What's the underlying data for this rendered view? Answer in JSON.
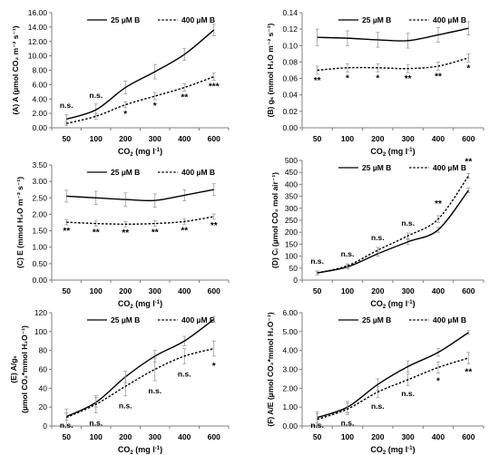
{
  "chart_data": [
    {
      "type": "line",
      "panel_label": "(A)",
      "x": [
        50,
        100,
        200,
        300,
        400,
        600
      ],
      "xlabel_main": "CO",
      "xlabel_sub": "2",
      "xlabel_tail": " (mg l",
      "xlabel_sup": "-1",
      "xlabel_end": ")",
      "ylabel": "(A) A (µmol CO₂ m⁻² s⁻¹)",
      "ylim": [
        0,
        16
      ],
      "yticks": [
        "0.00",
        "2.00",
        "4.00",
        "6.00",
        "8.00",
        "10.00",
        "12.00",
        "14.00",
        "16.00"
      ],
      "series": [
        {
          "name": "25 µM B",
          "style": "solid",
          "values": [
            1.2,
            2.5,
            5.6,
            7.8,
            10.2,
            13.6
          ],
          "err": [
            0.6,
            0.8,
            0.9,
            1.0,
            0.8,
            0.8
          ]
        },
        {
          "name": "400 µM B",
          "style": "dashed",
          "values": [
            0.6,
            1.6,
            3.2,
            4.4,
            5.6,
            7.1
          ],
          "err": [
            0.3,
            0.4,
            0.4,
            0.5,
            0.5,
            0.5
          ]
        }
      ],
      "annotations": [
        "n.s.",
        "n.s.",
        "*",
        "*",
        "**",
        "***"
      ],
      "ann_offsets": [
        -18,
        -18,
        10,
        10,
        10,
        10
      ]
    },
    {
      "type": "line",
      "panel_label": "(B)",
      "x": [
        50,
        100,
        200,
        300,
        400,
        600
      ],
      "xlabel_main": "CO",
      "xlabel_sub": "2",
      "xlabel_tail": " (mg l",
      "xlabel_sup": "-1",
      "xlabel_end": ")",
      "ylabel": "(B) gₛ (mmol H₂O m⁻² s⁻¹)",
      "ylim": [
        0,
        0.14
      ],
      "yticks": [
        "0.00",
        "0.02",
        "0.04",
        "0.06",
        "0.08",
        "0.10",
        "0.12",
        "0.14"
      ],
      "series": [
        {
          "name": "25 µM B",
          "style": "solid",
          "values": [
            0.11,
            0.109,
            0.107,
            0.106,
            0.113,
            0.121
          ],
          "err": [
            0.01,
            0.009,
            0.009,
            0.009,
            0.009,
            0.008
          ]
        },
        {
          "name": "400 µM B",
          "style": "dashed",
          "values": [
            0.07,
            0.073,
            0.073,
            0.072,
            0.075,
            0.085
          ],
          "err": [
            0.005,
            0.005,
            0.005,
            0.005,
            0.005,
            0.005
          ]
        }
      ],
      "annotations": [
        "**",
        "*",
        "*",
        "**",
        "**",
        "*"
      ],
      "ann_offsets": [
        10,
        10,
        10,
        10,
        10,
        10
      ]
    },
    {
      "type": "line",
      "panel_label": "(C)",
      "x": [
        50,
        100,
        200,
        300,
        400,
        600
      ],
      "xlabel_main": "CO",
      "xlabel_sub": "2",
      "xlabel_tail": " (mg l",
      "xlabel_sup": "-1",
      "xlabel_end": ")",
      "ylabel": "(C) E (mmol H₂O m⁻² s⁻¹)",
      "ylim": [
        0,
        3.5
      ],
      "yticks": [
        "0.00",
        "0.50",
        "1.00",
        "1.50",
        "2.00",
        "2.50",
        "3.00",
        "3.50"
      ],
      "series": [
        {
          "name": "25 µM B",
          "style": "solid",
          "values": [
            2.55,
            2.5,
            2.45,
            2.42,
            2.58,
            2.75
          ],
          "err": [
            0.18,
            0.2,
            0.2,
            0.2,
            0.17,
            0.18
          ]
        },
        {
          "name": "400 µM B",
          "style": "dashed",
          "values": [
            1.76,
            1.72,
            1.7,
            1.72,
            1.78,
            1.93
          ],
          "err": [
            0.08,
            0.08,
            0.08,
            0.08,
            0.08,
            0.08
          ]
        }
      ],
      "annotations": [
        "**",
        "**",
        "**",
        "**",
        "**",
        "**"
      ],
      "ann_offsets": [
        10,
        10,
        10,
        10,
        10,
        10
      ]
    },
    {
      "type": "line",
      "panel_label": "(D)",
      "x": [
        50,
        100,
        200,
        300,
        400,
        600
      ],
      "xlabel_main": "CO",
      "xlabel_sub": "2",
      "xlabel_tail": " (mg l",
      "xlabel_sup": "-1",
      "xlabel_end": ")",
      "ylabel": "(D) Cᵢ (µmol CO₂ mol air⁻¹)",
      "ylim": [
        0,
        500
      ],
      "yticks": [
        "0",
        "50",
        "100",
        "150",
        "200",
        "250",
        "300",
        "350",
        "400",
        "450",
        "500"
      ],
      "series": [
        {
          "name": "25 µM B",
          "style": "solid",
          "values": [
            30,
            55,
            110,
            160,
            210,
            375
          ],
          "err": [
            8,
            8,
            10,
            10,
            10,
            10
          ]
        },
        {
          "name": "400 µM B",
          "style": "dashed",
          "values": [
            30,
            60,
            125,
            185,
            255,
            435
          ],
          "err": [
            8,
            8,
            12,
            12,
            14,
            10
          ]
        }
      ],
      "annotations": [
        "n.s.",
        "n.s.",
        "n.s.",
        "n.s.",
        "**",
        "**"
      ],
      "ann_offsets": [
        -16,
        -16,
        -16,
        -16,
        -18,
        -18
      ]
    },
    {
      "type": "line",
      "panel_label": "(E)",
      "x": [
        50,
        100,
        200,
        300,
        400,
        600
      ],
      "xlabel_main": "CO",
      "xlabel_sub": "2",
      "xlabel_tail": " (mg l",
      "xlabel_sup": "-1",
      "xlabel_end": ")",
      "ylabel_line1": "(E) A/gₛ",
      "ylabel_line2": "(µmol CO₂*mmol H₂O⁻¹)",
      "ylim": [
        0,
        120
      ],
      "yticks": [
        "0",
        "20",
        "40",
        "60",
        "80",
        "100",
        "120"
      ],
      "series": [
        {
          "name": "25 µM B",
          "style": "solid",
          "values": [
            10,
            25,
            52,
            74,
            90,
            113
          ],
          "err": [
            4,
            5,
            6,
            6,
            5,
            3
          ]
        },
        {
          "name": "400 µM B",
          "style": "dashed",
          "values": [
            9,
            23,
            42,
            60,
            74,
            82
          ],
          "err": [
            9,
            9,
            10,
            12,
            8,
            8
          ]
        }
      ],
      "annotations": [
        "n.s.",
        "n.s.",
        "n.s.",
        "n.s.",
        "n.s.",
        "*"
      ],
      "ann_offsets": [
        14,
        14,
        14,
        14,
        14,
        14
      ]
    },
    {
      "type": "line",
      "panel_label": "(F)",
      "x": [
        50,
        100,
        200,
        300,
        400,
        600
      ],
      "xlabel_main": "CO",
      "xlabel_sub": "2",
      "xlabel_tail": " (mg l",
      "xlabel_sup": "-1",
      "xlabel_end": ")",
      "ylabel": "(F) A/E (µmol CO₂*mmol H₂O⁻¹)",
      "ylim": [
        0,
        6
      ],
      "yticks": [
        "0.00",
        "1.00",
        "2.00",
        "3.00",
        "4.00",
        "5.00",
        "6.00"
      ],
      "series": [
        {
          "name": "25 µM B",
          "style": "solid",
          "values": [
            0.45,
            1.0,
            2.2,
            3.15,
            3.9,
            4.95
          ],
          "err": [
            0.3,
            0.3,
            0.3,
            0.3,
            0.2,
            0.1
          ]
        },
        {
          "name": "400 µM B",
          "style": "dashed",
          "values": [
            0.35,
            0.9,
            1.8,
            2.45,
            3.1,
            3.6
          ],
          "err": [
            0.3,
            0.3,
            0.3,
            0.3,
            0.3,
            0.3
          ]
        }
      ],
      "annotations": [
        "n.s.",
        "n.s.",
        "n.s.",
        "n.s.",
        "*",
        "**"
      ],
      "ann_offsets": [
        12,
        12,
        12,
        12,
        12,
        12
      ]
    }
  ]
}
